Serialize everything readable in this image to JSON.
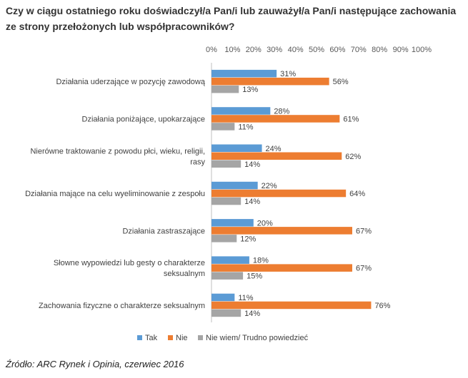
{
  "title_lines": [
    "Czy w ciągu ostatniego roku doświadczył/a Pan/i lub zauważył/a Pan/i następujące zachowania",
    "ze strony przełożonych lub współpracowników?"
  ],
  "source": "Źródło: ARC Rynek i Opinia, czerwiec 2016",
  "chart_data": {
    "type": "bar",
    "orientation": "horizontal",
    "title": "Czy w ciągu ostatniego roku doświadczył/a Pan/i lub zauważył/a Pan/i następujące zachowania ze strony przełożonych lub współpracowników?",
    "x_ticks": [
      "0%",
      "10%",
      "20%",
      "30%",
      "40%",
      "50%",
      "60%",
      "70%",
      "80%",
      "90%",
      "100%"
    ],
    "xlim": [
      0,
      100
    ],
    "grid": false,
    "legend_position": "bottom",
    "categories": [
      [
        "Działania uderzające w pozycję zawodową"
      ],
      [
        "Działania poniżające, upokarzające"
      ],
      [
        "Nierówne traktowanie z powodu płci, wieku, religii,",
        "rasy"
      ],
      [
        "Działania mające na celu wyeliminowanie z zespołu"
      ],
      [
        "Działania zastraszające"
      ],
      [
        "Słowne wypowiedzi lub gesty o charakterze",
        "seksualnym"
      ],
      [
        "Zachowania fizyczne o charakterze seksualnym"
      ]
    ],
    "series": [
      {
        "name": "Tak",
        "color": "#5B9BD5",
        "values": [
          31,
          28,
          24,
          22,
          20,
          18,
          11
        ],
        "labels": [
          "31%",
          "28%",
          "24%",
          "22%",
          "20%",
          "18%",
          "11%"
        ]
      },
      {
        "name": "Nie",
        "color": "#ED7D31",
        "values": [
          56,
          61,
          62,
          64,
          67,
          67,
          76
        ],
        "labels": [
          "56%",
          "61%",
          "62%",
          "64%",
          "67%",
          "67%",
          "76%"
        ]
      },
      {
        "name": "Nie wiem/ Trudno powiedzieć",
        "color": "#A5A5A5",
        "values": [
          13,
          11,
          14,
          14,
          12,
          15,
          14
        ],
        "labels": [
          "13%",
          "11%",
          "14%",
          "14%",
          "12%",
          "15%",
          "14%"
        ]
      }
    ]
  }
}
